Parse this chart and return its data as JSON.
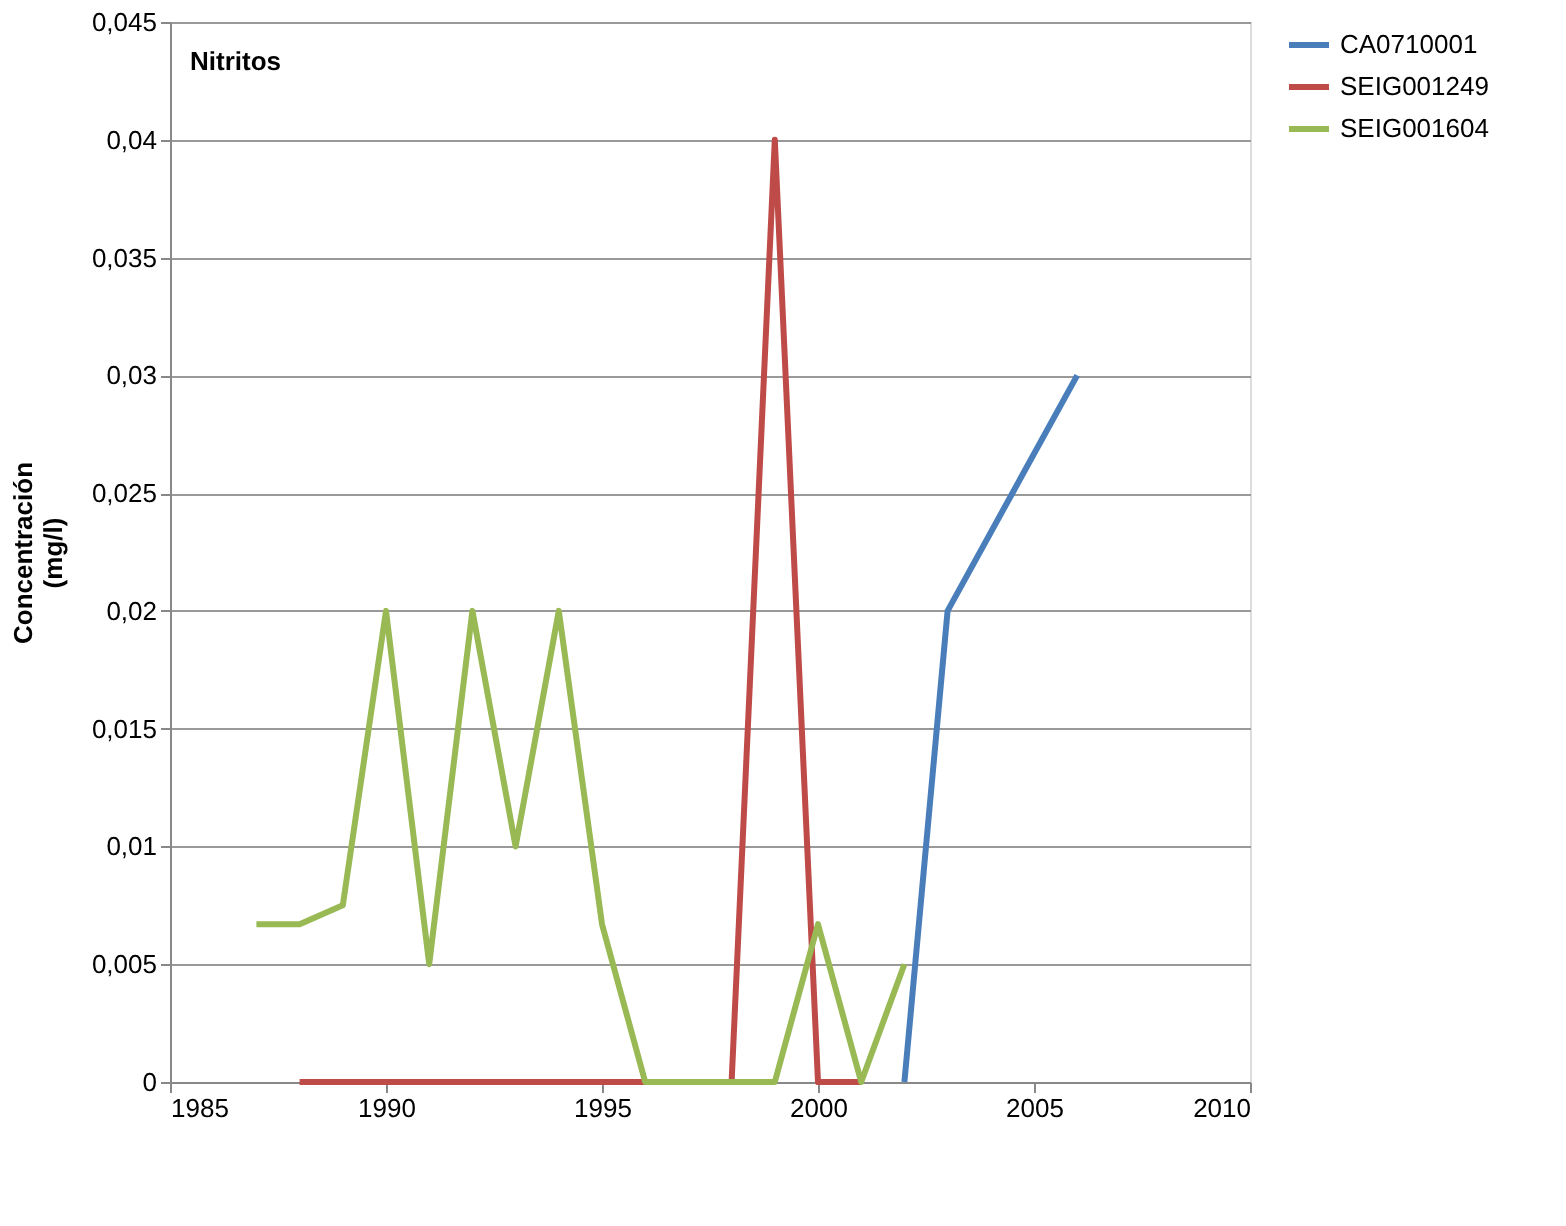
{
  "chart_data": {
    "type": "line",
    "title": "Nitritos",
    "ylabel": "Concentración (mg/l)",
    "xlim": [
      1985,
      2010
    ],
    "xticks": [
      1985,
      1990,
      1995,
      2000,
      2005,
      2010
    ],
    "ylim": [
      0,
      0.045
    ],
    "yticks": [
      {
        "value": 0,
        "label": "0"
      },
      {
        "value": 0.005,
        "label": "0,005"
      },
      {
        "value": 0.01,
        "label": "0,01"
      },
      {
        "value": 0.015,
        "label": "0,015"
      },
      {
        "value": 0.02,
        "label": "0,02"
      },
      {
        "value": 0.025,
        "label": "0,025"
      },
      {
        "value": 0.03,
        "label": "0,03"
      },
      {
        "value": 0.035,
        "label": "0,035"
      },
      {
        "value": 0.04,
        "label": "0,04"
      },
      {
        "value": 0.045,
        "label": "0,045"
      }
    ],
    "grid": "y",
    "legend": "right",
    "marker": "none",
    "line_style": "solid",
    "series": [
      {
        "name": "CA0710001",
        "color": "#4a7ebb",
        "x": [
          2002,
          2003,
          2006
        ],
        "values": [
          0,
          0.02,
          0.03
        ]
      },
      {
        "name": "SEIG001249",
        "color": "#be4b48",
        "x": [
          1988,
          1998,
          1999,
          2000,
          2001
        ],
        "values": [
          0,
          0,
          0.04,
          0,
          0
        ]
      },
      {
        "name": "SEIG001604",
        "color": "#98b954",
        "x": [
          1987,
          1988,
          1989,
          1990,
          1991,
          1992,
          1993,
          1994,
          1995,
          1996,
          1997,
          1998,
          1999,
          2000,
          2001,
          2002
        ],
        "values": [
          0.0067,
          0.0067,
          0.0075,
          0.02,
          0.005,
          0.02,
          0.01,
          0.02,
          0.0067,
          0,
          0,
          0,
          0,
          0.0067,
          0,
          0.005
        ]
      }
    ]
  }
}
